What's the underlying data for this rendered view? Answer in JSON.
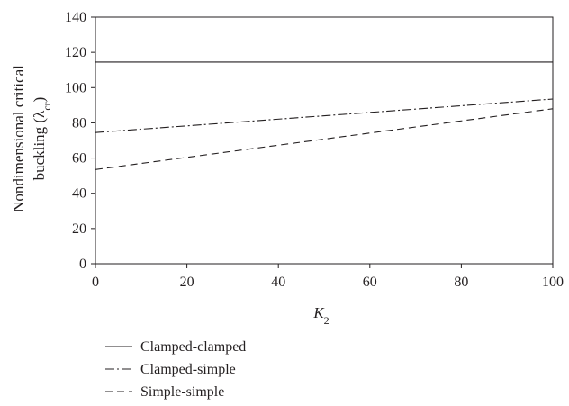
{
  "chart_data": {
    "type": "line",
    "xlabel": "K",
    "xlabel_sub": "2",
    "ylabel_line1": "Nondimensional critical",
    "ylabel_line2": "buckling (λ",
    "ylabel_sub": "cr",
    "ylabel_close": ")",
    "xlim": [
      0,
      100
    ],
    "ylim": [
      0,
      140
    ],
    "xticks": [
      0,
      20,
      40,
      60,
      80,
      100
    ],
    "yticks": [
      0,
      20,
      40,
      60,
      80,
      100,
      120,
      140
    ],
    "grid": false,
    "legend_position": "bottom-left",
    "series": [
      {
        "name": "Clamped-clamped",
        "style": "solid",
        "x": [
          0,
          100
        ],
        "y": [
          114.5,
          114.5
        ]
      },
      {
        "name": "Clamped-simple",
        "style": "dash-dot",
        "x": [
          0,
          100
        ],
        "y": [
          74.5,
          93.5
        ]
      },
      {
        "name": "Simple-simple",
        "style": "dashed",
        "x": [
          0,
          100
        ],
        "y": [
          53.5,
          88
        ]
      }
    ],
    "line_color": "#231f20"
  }
}
